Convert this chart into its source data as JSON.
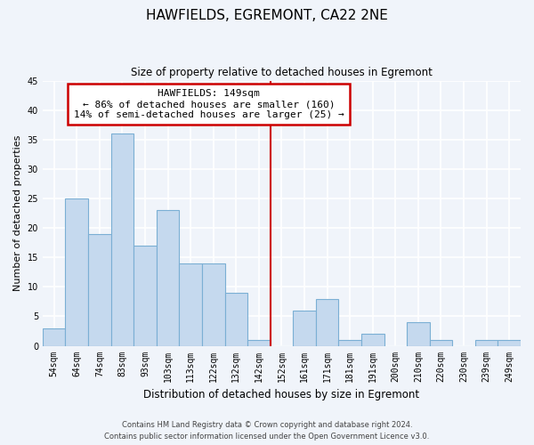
{
  "title": "HAWFIELDS, EGREMONT, CA22 2NE",
  "subtitle": "Size of property relative to detached houses in Egremont",
  "xlabel": "Distribution of detached houses by size in Egremont",
  "ylabel": "Number of detached properties",
  "bar_labels": [
    "54sqm",
    "64sqm",
    "74sqm",
    "83sqm",
    "93sqm",
    "103sqm",
    "113sqm",
    "122sqm",
    "132sqm",
    "142sqm",
    "152sqm",
    "161sqm",
    "171sqm",
    "181sqm",
    "191sqm",
    "200sqm",
    "210sqm",
    "220sqm",
    "230sqm",
    "239sqm",
    "249sqm"
  ],
  "bar_values": [
    3,
    25,
    19,
    36,
    17,
    23,
    14,
    14,
    9,
    1,
    0,
    6,
    8,
    1,
    2,
    0,
    4,
    1,
    0,
    1,
    1
  ],
  "bar_color": "#c5d9ee",
  "bar_edge_color": "#7bafd4",
  "vline_index": 10,
  "annotation_box_text": "HAWFIELDS: 149sqm\n← 86% of detached houses are smaller (160)\n14% of semi-detached houses are larger (25) →",
  "vline_color": "#cc0000",
  "box_edge_color": "#cc0000",
  "ylim": [
    0,
    45
  ],
  "yticks": [
    0,
    5,
    10,
    15,
    20,
    25,
    30,
    35,
    40,
    45
  ],
  "footnote_line1": "Contains HM Land Registry data © Crown copyright and database right 2024.",
  "footnote_line2": "Contains public sector information licensed under the Open Government Licence v3.0.",
  "background_color": "#f0f4fa",
  "grid_color": "#ffffff",
  "title_fontsize": 11,
  "subtitle_fontsize": 8.5,
  "xlabel_fontsize": 8.5,
  "ylabel_fontsize": 8,
  "tick_fontsize": 7,
  "footnote_fontsize": 6,
  "ann_fontsize": 8
}
